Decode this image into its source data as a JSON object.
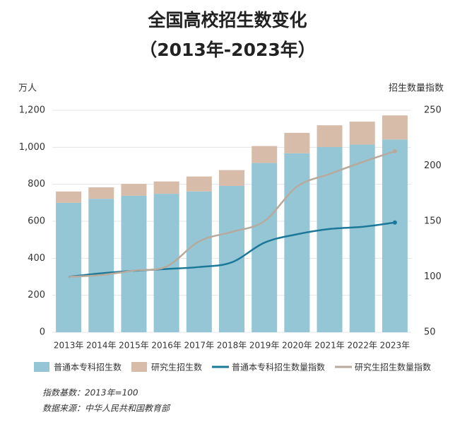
{
  "chart_data": {
    "type": "bar",
    "title": "全国高校招生数变化",
    "subtitle": "（2013年-2023年）",
    "y_label": "万人",
    "y2_label": "招生数量指数",
    "categories": [
      "2013年",
      "2014年",
      "2015年",
      "2016年",
      "2017年",
      "2018年",
      "2019年",
      "2020年",
      "2021年",
      "2022年",
      "2023年"
    ],
    "stacked": true,
    "series": [
      {
        "name": "普通本专科招生数",
        "color": "#94c6d6",
        "values": [
          699.8,
          721.4,
          737.8,
          748.6,
          761.5,
          791.0,
          914.9,
          967.5,
          1001.3,
          1014.5,
          1042.2
        ]
      },
      {
        "name": "研究生招生数",
        "color": "#d6bca9",
        "values": [
          61.1,
          62.1,
          64.5,
          66.7,
          80.6,
          85.8,
          91.7,
          110.7,
          117.7,
          124.2,
          130.2
        ]
      },
      {
        "name": "普通本专科招生数量指数",
        "type": "line",
        "axis": "y2",
        "color": "#1b7898",
        "values": [
          100,
          103.1,
          105.4,
          107.0,
          108.8,
          113.0,
          130.7,
          138.3,
          143.1,
          145.0,
          148.9
        ]
      },
      {
        "name": "研究生招生数量指数",
        "type": "line",
        "axis": "y2",
        "color": "#b7aa9c",
        "values": [
          100,
          101.6,
          105.6,
          109.2,
          131.9,
          140.4,
          150.1,
          181.2,
          192.6,
          203.3,
          213.1
        ]
      }
    ],
    "ylim": [
      0,
      1200
    ],
    "yticks": [
      0,
      200,
      400,
      600,
      800,
      {
        "value": 1000,
        "label": "1,000"
      },
      {
        "value": 1200,
        "label": "1,200"
      }
    ],
    "y2lim": [
      50,
      250
    ],
    "y2ticks": [
      50,
      100,
      150,
      200,
      250
    ],
    "grid": true,
    "legend": "bottom",
    "notes": [
      "指数基数：2013年=100",
      "数据来源：中华人民共和国教育部"
    ]
  }
}
